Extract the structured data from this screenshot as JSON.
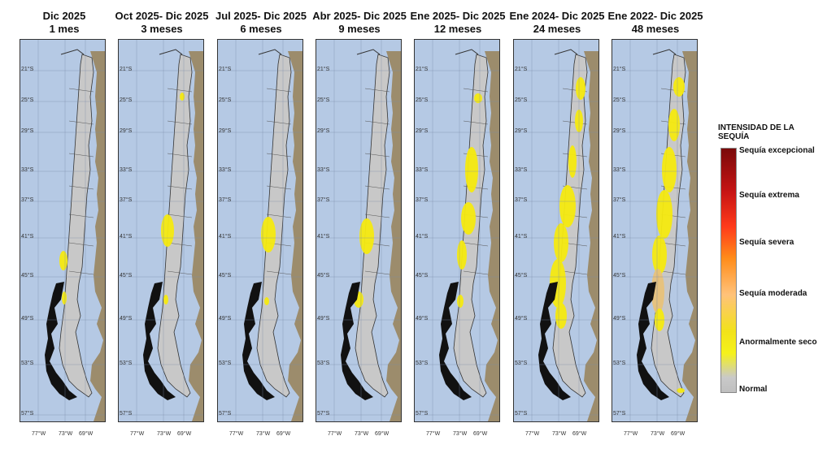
{
  "panels": [
    {
      "line1": "Dic 2025",
      "line2": "1 mes"
    },
    {
      "line1": "Oct 2025- Dic 2025",
      "line2": "3 meses"
    },
    {
      "line1": "Jul 2025- Dic 2025",
      "line2": "6 meses"
    },
    {
      "line1": "Abr 2025- Dic 2025",
      "line2": "9 meses"
    },
    {
      "line1": "Ene 2025- Dic 2025",
      "line2": "12 meses"
    },
    {
      "line1": "Ene 2024- Dic 2025",
      "line2": "24 meses"
    },
    {
      "line1": "Ene 2022- Dic 2025",
      "line2": "48 meses"
    }
  ],
  "latitudes": [
    "21°S",
    "25°S",
    "29°S",
    "33°S",
    "37°S",
    "41°S",
    "45°S",
    "49°S",
    "53°S",
    "57°S"
  ],
  "longitudes": [
    "77°W",
    "73°W",
    "69°W"
  ],
  "legend": {
    "title": "INTENSIDAD DE LA SEQUÍA",
    "items": [
      "Sequía excepcional",
      "Sequía extrema",
      "Sequía severa",
      "Sequía moderada",
      "Anormalmente seco",
      "Normal"
    ]
  },
  "colors": {
    "ocean": "#b5c9e4",
    "land": "#9c8c6c",
    "chile": "#c8c8c8",
    "dry": "#f5ea10",
    "moderate": "#e8c27a",
    "islands": "#111111"
  }
}
